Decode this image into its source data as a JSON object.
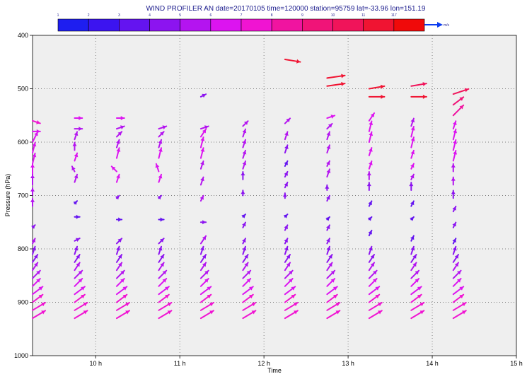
{
  "chart_data": {
    "type": "wind_barb_arrows",
    "title": "WIND PROFILER AN date=20170105 time=120000 station=95759 lat=-33.96 lon=151.19",
    "xlabel": "Time",
    "ylabel": "Pressure (hPa)",
    "x_ticks": [
      "10 h",
      "11 h",
      "12 h",
      "13 h",
      "14 h",
      "15 h"
    ],
    "y_ticks": [
      "400",
      "500",
      "600",
      "700",
      "800",
      "900",
      "1000"
    ],
    "xlim_hours": [
      9.25,
      15.0
    ],
    "ylim_hpa": [
      400,
      1000
    ],
    "grid": true,
    "background": "#efefef",
    "colorbar": {
      "labels": [
        "1",
        "2",
        "3",
        "4",
        "5",
        "6",
        "7",
        "8",
        "9",
        "10",
        "11",
        "117"
      ],
      "colors": [
        "#1e1ef0",
        "#3c14f0",
        "#6414f0",
        "#8c14f0",
        "#b414f0",
        "#dc14f0",
        "#f014d2",
        "#f014a0",
        "#f01478",
        "#f0145a",
        "#f01432",
        "#f00a0a"
      ],
      "unit": "m/s",
      "legend_arrow_color": "#0a3cf0"
    },
    "profiles": [
      {
        "time": 9.25,
        "levels": [
          {
            "p": 560,
            "u": 3,
            "v": -1,
            "s": 7
          },
          {
            "p": 580,
            "u": 3,
            "v": 0,
            "s": 6
          },
          {
            "p": 600,
            "u": 2,
            "v": 4,
            "s": 6
          },
          {
            "p": 620,
            "u": 1,
            "v": 4,
            "s": 6
          },
          {
            "p": 640,
            "u": 1,
            "v": 4,
            "s": 6
          },
          {
            "p": 660,
            "u": 0,
            "v": 4,
            "s": 6
          },
          {
            "p": 680,
            "u": 0,
            "v": 4,
            "s": 5
          },
          {
            "p": 700,
            "u": 0,
            "v": 3,
            "s": 5
          },
          {
            "p": 720,
            "u": 0,
            "v": 3,
            "s": 5
          },
          {
            "p": 760,
            "u": 1,
            "v": 1,
            "s": 4
          },
          {
            "p": 790,
            "u": 1,
            "v": 2,
            "s": 5
          }
        ]
      },
      {
        "time": 9.75,
        "levels": [
          {
            "p": 555,
            "u": 3,
            "v": 0,
            "s": 6
          },
          {
            "p": 575,
            "u": 3,
            "v": 0,
            "s": 5
          },
          {
            "p": 595,
            "u": 1,
            "v": 3,
            "s": 5
          },
          {
            "p": 615,
            "u": 0,
            "v": 3,
            "s": 5
          },
          {
            "p": 635,
            "u": 1,
            "v": 3,
            "s": 6
          },
          {
            "p": 655,
            "u": -1,
            "v": 2,
            "s": 5
          },
          {
            "p": 675,
            "u": 1,
            "v": 3,
            "s": 5
          },
          {
            "p": 715,
            "u": 1,
            "v": 1,
            "s": 3
          },
          {
            "p": 740,
            "u": 2,
            "v": 0,
            "s": 3
          },
          {
            "p": 785,
            "u": 2,
            "v": 1,
            "s": 4
          }
        ]
      },
      {
        "time": 10.25,
        "levels": [
          {
            "p": 555,
            "u": 3,
            "v": 0,
            "s": 6
          },
          {
            "p": 575,
            "u": 3,
            "v": 1,
            "s": 5
          },
          {
            "p": 590,
            "u": 2,
            "v": 2,
            "s": 5
          },
          {
            "p": 610,
            "u": 1,
            "v": 3,
            "s": 5
          },
          {
            "p": 630,
            "u": 1,
            "v": 4,
            "s": 6
          },
          {
            "p": 655,
            "u": -2,
            "v": 2,
            "s": 6
          },
          {
            "p": 675,
            "u": 1,
            "v": 3,
            "s": 6
          },
          {
            "p": 705,
            "u": 1,
            "v": 1,
            "s": 4
          },
          {
            "p": 745,
            "u": 2,
            "v": 0,
            "s": 3
          },
          {
            "p": 790,
            "u": 2,
            "v": 2,
            "s": 4
          }
        ]
      },
      {
        "time": 10.75,
        "levels": [
          {
            "p": 575,
            "u": 3,
            "v": 1,
            "s": 5
          },
          {
            "p": 590,
            "u": 2,
            "v": 2,
            "s": 5
          },
          {
            "p": 610,
            "u": 1,
            "v": 3,
            "s": 5
          },
          {
            "p": 630,
            "u": 1,
            "v": 4,
            "s": 6
          },
          {
            "p": 655,
            "u": -1,
            "v": 3,
            "s": 6
          },
          {
            "p": 675,
            "u": 1,
            "v": 3,
            "s": 6
          },
          {
            "p": 705,
            "u": 1,
            "v": 1,
            "s": 4
          },
          {
            "p": 745,
            "u": 2,
            "v": 0,
            "s": 3
          },
          {
            "p": 790,
            "u": 2,
            "v": 2,
            "s": 4
          }
        ]
      },
      {
        "time": 11.25,
        "levels": [
          {
            "p": 515,
            "u": 2,
            "v": 1,
            "s": 4
          },
          {
            "p": 575,
            "u": 3,
            "v": 1,
            "s": 5
          },
          {
            "p": 590,
            "u": 2,
            "v": 3,
            "s": 6
          },
          {
            "p": 610,
            "u": 1,
            "v": 4,
            "s": 6
          },
          {
            "p": 630,
            "u": 1,
            "v": 4,
            "s": 6
          },
          {
            "p": 650,
            "u": 1,
            "v": 3,
            "s": 5
          },
          {
            "p": 680,
            "u": 1,
            "v": 3,
            "s": 5
          },
          {
            "p": 710,
            "u": 1,
            "v": 2,
            "s": 5
          },
          {
            "p": 750,
            "u": 2,
            "v": 0,
            "s": 4
          },
          {
            "p": 790,
            "u": 2,
            "v": 3,
            "s": 5
          }
        ]
      },
      {
        "time": 11.75,
        "levels": [
          {
            "p": 570,
            "u": 2,
            "v": 2,
            "s": 5
          },
          {
            "p": 590,
            "u": 1,
            "v": 3,
            "s": 5
          },
          {
            "p": 610,
            "u": 1,
            "v": 3,
            "s": 5
          },
          {
            "p": 630,
            "u": 1,
            "v": 3,
            "s": 5
          },
          {
            "p": 650,
            "u": 1,
            "v": 3,
            "s": 5
          },
          {
            "p": 670,
            "u": 0,
            "v": 3,
            "s": 4
          },
          {
            "p": 700,
            "u": 0,
            "v": 2,
            "s": 4
          },
          {
            "p": 740,
            "u": 1,
            "v": 1,
            "s": 3
          },
          {
            "p": 760,
            "u": 1,
            "v": 2,
            "s": 4
          },
          {
            "p": 790,
            "u": 1,
            "v": 2,
            "s": 4
          }
        ]
      },
      {
        "time": 12.25,
        "levels": [
          {
            "p": 445,
            "u": 6,
            "v": -1,
            "s": 11
          },
          {
            "p": 565,
            "u": 2,
            "v": 2,
            "s": 5
          },
          {
            "p": 595,
            "u": 1,
            "v": 3,
            "s": 5
          },
          {
            "p": 620,
            "u": 1,
            "v": 3,
            "s": 4
          },
          {
            "p": 645,
            "u": 1,
            "v": 2,
            "s": 3
          },
          {
            "p": 665,
            "u": 1,
            "v": 2,
            "s": 4
          },
          {
            "p": 685,
            "u": 1,
            "v": 2,
            "s": 4
          },
          {
            "p": 705,
            "u": 0,
            "v": 2,
            "s": 4
          },
          {
            "p": 740,
            "u": 1,
            "v": 1,
            "s": 3
          },
          {
            "p": 765,
            "u": 1,
            "v": 2,
            "s": 4
          },
          {
            "p": 790,
            "u": 1,
            "v": 2,
            "s": 4
          }
        ]
      },
      {
        "time": 12.75,
        "levels": [
          {
            "p": 480,
            "u": 7,
            "v": 1,
            "s": 11
          },
          {
            "p": 495,
            "u": 7,
            "v": 1,
            "s": 11
          },
          {
            "p": 555,
            "u": 3,
            "v": 1,
            "s": 6
          },
          {
            "p": 575,
            "u": 2,
            "v": 2,
            "s": 5
          },
          {
            "p": 595,
            "u": 1,
            "v": 3,
            "s": 5
          },
          {
            "p": 620,
            "u": 1,
            "v": 3,
            "s": 5
          },
          {
            "p": 645,
            "u": 1,
            "v": 2,
            "s": 5
          },
          {
            "p": 665,
            "u": 1,
            "v": 3,
            "s": 5
          },
          {
            "p": 690,
            "u": 0,
            "v": 2,
            "s": 4
          },
          {
            "p": 710,
            "u": 1,
            "v": 2,
            "s": 4
          },
          {
            "p": 745,
            "u": 1,
            "v": 1,
            "s": 3
          },
          {
            "p": 765,
            "u": 1,
            "v": 2,
            "s": 4
          },
          {
            "p": 790,
            "u": 1,
            "v": 2,
            "s": 4
          }
        ]
      },
      {
        "time": 13.25,
        "levels": [
          {
            "p": 500,
            "u": 6,
            "v": 1,
            "s": 11
          },
          {
            "p": 515,
            "u": 6,
            "v": 0,
            "s": 11
          },
          {
            "p": 560,
            "u": 2,
            "v": 3,
            "s": 6
          },
          {
            "p": 580,
            "u": 1,
            "v": 4,
            "s": 6
          },
          {
            "p": 600,
            "u": 1,
            "v": 4,
            "s": 6
          },
          {
            "p": 625,
            "u": 1,
            "v": 3,
            "s": 6
          },
          {
            "p": 650,
            "u": 1,
            "v": 3,
            "s": 6
          },
          {
            "p": 670,
            "u": 0,
            "v": 3,
            "s": 5
          },
          {
            "p": 690,
            "u": 0,
            "v": 3,
            "s": 4
          },
          {
            "p": 720,
            "u": 1,
            "v": 2,
            "s": 3
          },
          {
            "p": 745,
            "u": 1,
            "v": 1,
            "s": 3
          },
          {
            "p": 775,
            "u": 1,
            "v": 2,
            "s": 3
          }
        ]
      },
      {
        "time": 13.75,
        "levels": [
          {
            "p": 495,
            "u": 6,
            "v": 1,
            "s": 10
          },
          {
            "p": 515,
            "u": 6,
            "v": 0,
            "s": 11
          },
          {
            "p": 570,
            "u": 1,
            "v": 3,
            "s": 5
          },
          {
            "p": 590,
            "u": 1,
            "v": 4,
            "s": 6
          },
          {
            "p": 610,
            "u": 1,
            "v": 4,
            "s": 6
          },
          {
            "p": 630,
            "u": 1,
            "v": 3,
            "s": 6
          },
          {
            "p": 650,
            "u": 1,
            "v": 2,
            "s": 6
          },
          {
            "p": 670,
            "u": 1,
            "v": 2,
            "s": 5
          },
          {
            "p": 690,
            "u": 0,
            "v": 3,
            "s": 4
          },
          {
            "p": 720,
            "u": 1,
            "v": 2,
            "s": 3
          },
          {
            "p": 745,
            "u": 1,
            "v": 1,
            "s": 3
          },
          {
            "p": 785,
            "u": 1,
            "v": 2,
            "s": 3
          }
        ]
      },
      {
        "time": 14.25,
        "levels": [
          {
            "p": 510,
            "u": 6,
            "v": 2,
            "s": 10
          },
          {
            "p": 530,
            "u": 4,
            "v": 3,
            "s": 9
          },
          {
            "p": 550,
            "u": 4,
            "v": 4,
            "s": 8
          },
          {
            "p": 575,
            "u": 1,
            "v": 3,
            "s": 6
          },
          {
            "p": 595,
            "u": 1,
            "v": 4,
            "s": 6
          },
          {
            "p": 615,
            "u": 1,
            "v": 4,
            "s": 6
          },
          {
            "p": 635,
            "u": 1,
            "v": 4,
            "s": 6
          },
          {
            "p": 655,
            "u": 0,
            "v": 3,
            "s": 5
          },
          {
            "p": 680,
            "u": 0,
            "v": 3,
            "s": 5
          },
          {
            "p": 705,
            "u": 0,
            "v": 3,
            "s": 4
          },
          {
            "p": 730,
            "u": 1,
            "v": 2,
            "s": 4
          },
          {
            "p": 760,
            "u": 1,
            "v": 2,
            "s": 4
          },
          {
            "p": 790,
            "u": 1,
            "v": 2,
            "s": 3
          }
        ]
      }
    ],
    "low_level": {
      "times": [
        9.25,
        9.75,
        10.25,
        10.75,
        11.25,
        11.75,
        12.25,
        12.75,
        13.25,
        13.75,
        14.25
      ],
      "levels": [
        {
          "p": 810,
          "u": 1,
          "v": 3,
          "s": 4
        },
        {
          "p": 825,
          "u": 2,
          "v": 3,
          "s": 4
        },
        {
          "p": 840,
          "u": 2,
          "v": 3,
          "s": 5
        },
        {
          "p": 855,
          "u": 3,
          "v": 3,
          "s": 5
        },
        {
          "p": 870,
          "u": 3,
          "v": 3,
          "s": 6
        },
        {
          "p": 885,
          "u": 4,
          "v": 3,
          "s": 6
        },
        {
          "p": 900,
          "u": 4,
          "v": 3,
          "s": 7
        },
        {
          "p": 915,
          "u": 5,
          "v": 3,
          "s": 7
        },
        {
          "p": 930,
          "u": 5,
          "v": 3,
          "s": 7
        }
      ]
    }
  }
}
